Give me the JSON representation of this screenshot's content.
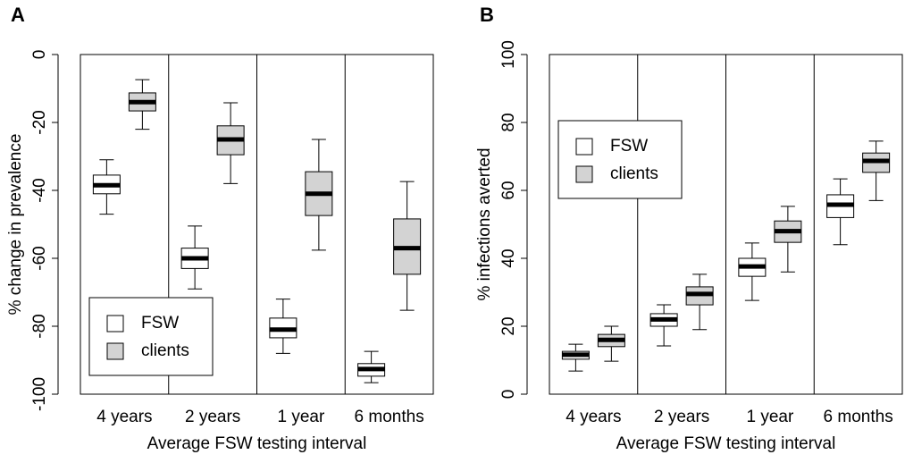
{
  "charts": [
    {
      "type": "box",
      "title": "A",
      "ylabel": "% change in prevalence",
      "xlabel": "Average FSW testing interval",
      "categories": [
        "4 years",
        "2 years",
        "1 year",
        "6 months"
      ],
      "ylim": [
        -100,
        0
      ],
      "yticks": [
        0,
        -20,
        -40,
        -60,
        -80,
        -100
      ],
      "legend": "bottom-left",
      "series": [
        {
          "name": "FSW",
          "color": "#ffffff",
          "values": [
            {
              "min": -47,
              "q1": -41,
              "median": -38.5,
              "q3": -35.5,
              "max": -31
            },
            {
              "min": -69,
              "q1": -63,
              "median": -60,
              "q3": -57,
              "max": -50.5
            },
            {
              "min": -88,
              "q1": -83.4,
              "median": -81,
              "q3": -77.6,
              "max": -72
            },
            {
              "min": -96.6,
              "q1": -94.7,
              "median": -92.6,
              "q3": -91,
              "max": -87.4
            }
          ]
        },
        {
          "name": "clients",
          "color": "#d3d3d3",
          "values": [
            {
              "min": -22,
              "q1": -16.6,
              "median": -14,
              "q3": -11.3,
              "max": -7.4
            },
            {
              "min": -38,
              "q1": -29.5,
              "median": -25,
              "q3": -21,
              "max": -14.2
            },
            {
              "min": -57.6,
              "q1": -47.4,
              "median": -41,
              "q3": -34.5,
              "max": -25
            },
            {
              "min": -75.3,
              "q1": -64.7,
              "median": -57,
              "q3": -48.4,
              "max": -37.4
            }
          ]
        }
      ]
    },
    {
      "type": "box",
      "title": "B",
      "ylabel": "% infections averted",
      "xlabel": "Average FSW testing interval",
      "categories": [
        "4 years",
        "2 years",
        "1 year",
        "6 months"
      ],
      "ylim": [
        0,
        100
      ],
      "yticks": [
        0,
        20,
        40,
        60,
        80,
        100
      ],
      "legend": "top-left",
      "series": [
        {
          "name": "FSW",
          "color": "#ffffff",
          "values": [
            {
              "min": 6.8,
              "q1": 10.3,
              "median": 11.6,
              "q3": 12.6,
              "max": 14.7
            },
            {
              "min": 14.2,
              "q1": 20,
              "median": 22,
              "q3": 23.7,
              "max": 26.3
            },
            {
              "min": 27.6,
              "q1": 34.7,
              "median": 37.6,
              "q3": 40,
              "max": 44.5
            },
            {
              "min": 44,
              "q1": 52,
              "median": 55.8,
              "q3": 58.7,
              "max": 63.4
            }
          ]
        },
        {
          "name": "clients",
          "color": "#d3d3d3",
          "values": [
            {
              "min": 9.7,
              "q1": 14,
              "median": 16,
              "q3": 17.6,
              "max": 20
            },
            {
              "min": 19,
              "q1": 26.3,
              "median": 29.5,
              "q3": 31.6,
              "max": 35.3
            },
            {
              "min": 36,
              "q1": 44.7,
              "median": 48,
              "q3": 51,
              "max": 55.3
            },
            {
              "min": 57,
              "q1": 65.3,
              "median": 68.7,
              "q3": 71,
              "max": 74.5
            }
          ]
        }
      ]
    }
  ]
}
